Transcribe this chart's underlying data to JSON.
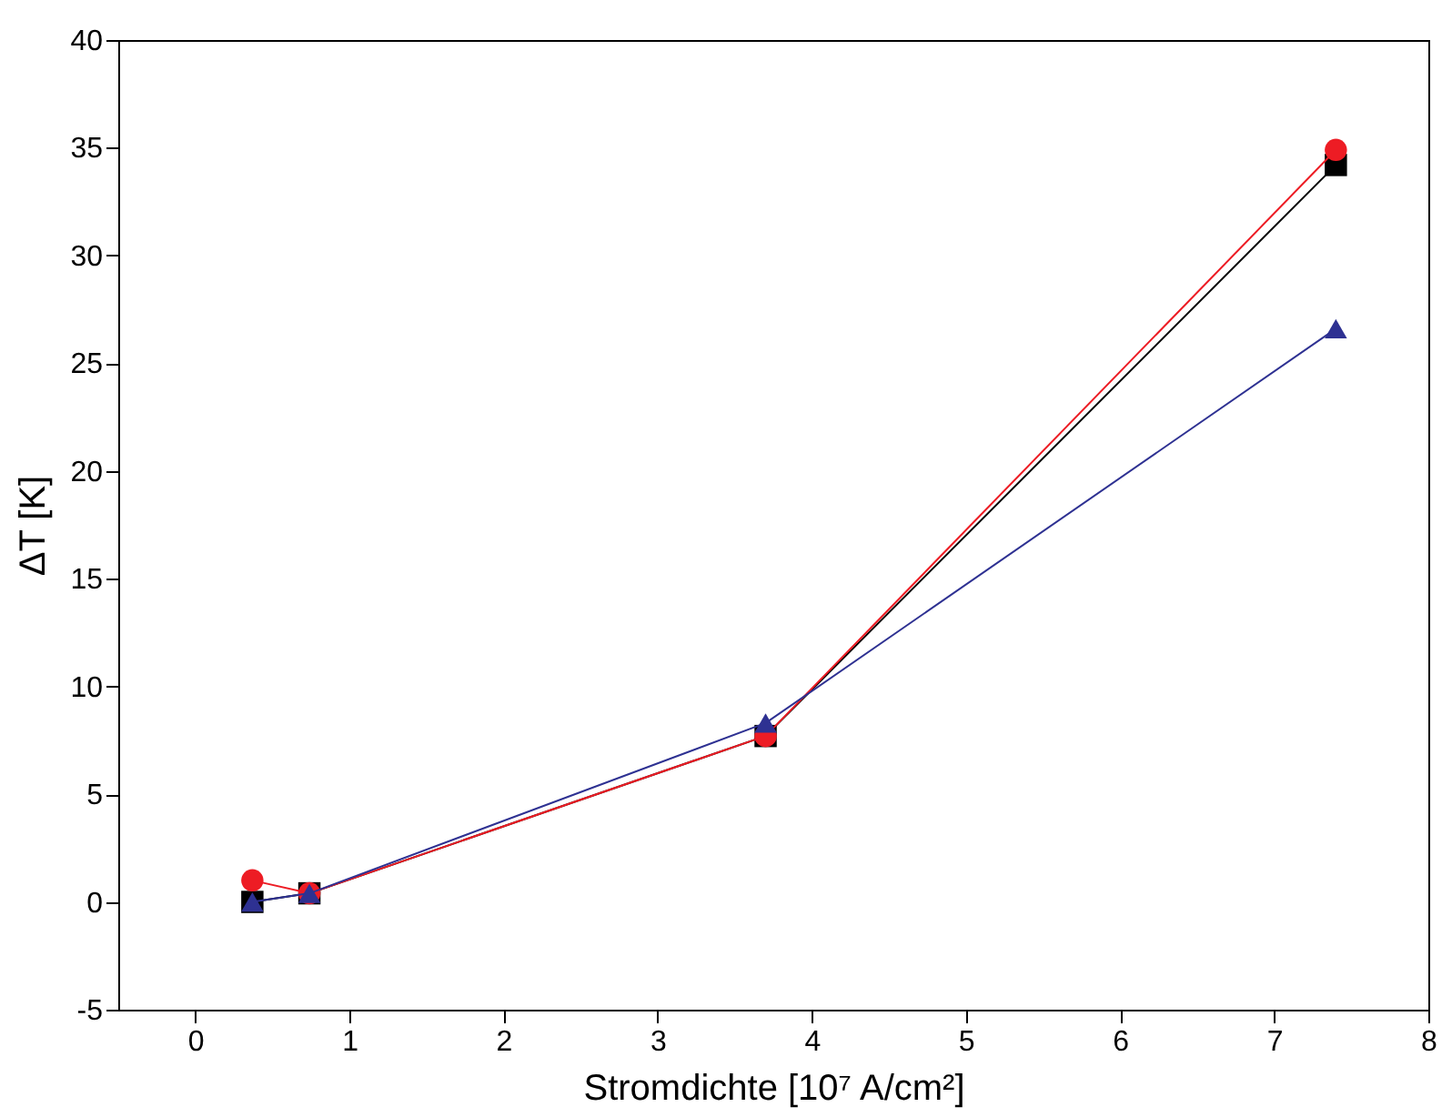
{
  "chart_data": {
    "type": "line",
    "xlabel": "Stromdichte [10⁷ A/cm²]",
    "ylabel": "ΔT [K]",
    "x": [
      0.37,
      0.74,
      3.7,
      7.4
    ],
    "series": [
      {
        "color": "#000000",
        "marker": "square",
        "values": [
          0,
          0.4,
          7.7,
          34.2
        ]
      },
      {
        "color": "#ed1c24",
        "marker": "circle",
        "values": [
          1.0,
          0.4,
          7.7,
          34.9
        ]
      },
      {
        "color": "#2e3192",
        "marker": "triangle",
        "values": [
          0,
          0.4,
          8.3,
          26.6
        ]
      }
    ],
    "xlim": [
      -0.5,
      8
    ],
    "xticks": [
      0,
      1,
      2,
      3,
      4,
      5,
      6,
      7,
      8
    ],
    "ylim": [
      -5,
      40
    ],
    "yticks": [
      -5,
      0,
      5,
      10,
      15,
      20,
      25,
      30,
      35,
      40
    ],
    "grid": false
  }
}
